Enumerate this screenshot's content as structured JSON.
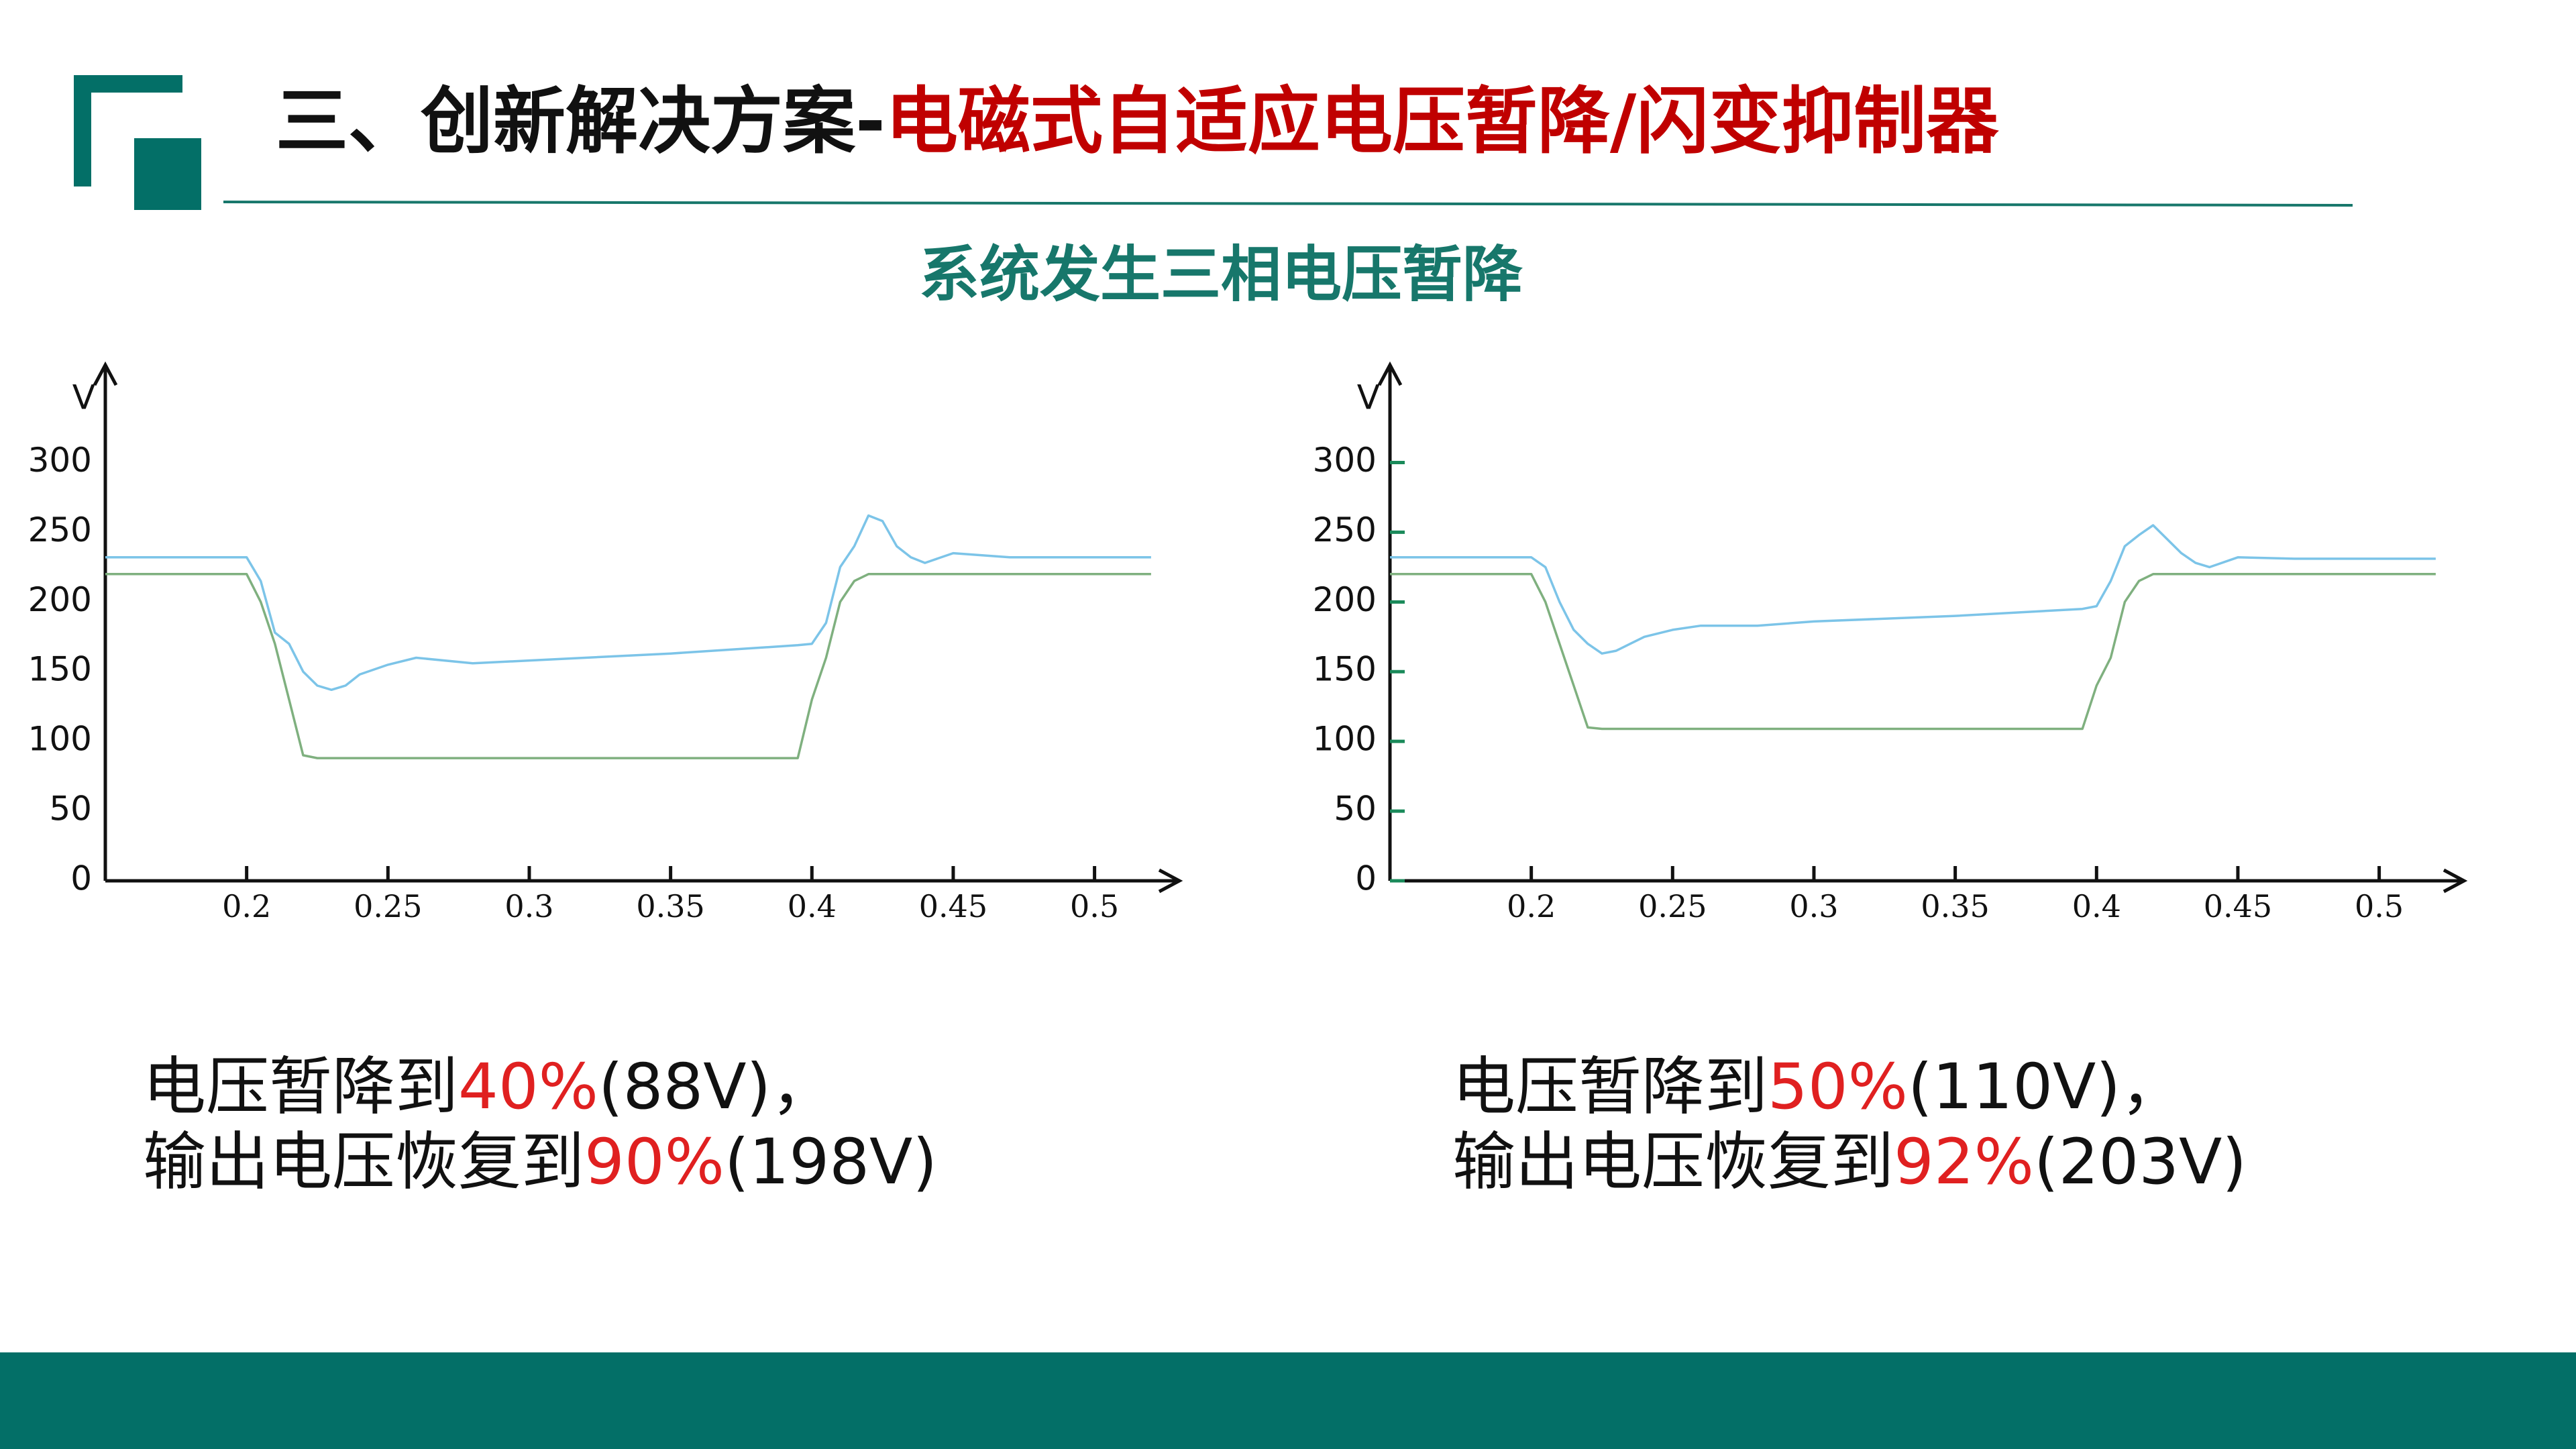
{
  "header": {
    "title_parts": [
      {
        "text": "三、创新解决方案-",
        "color": "#111111"
      },
      {
        "text": "电磁式自适应电压暂降/闪变抑制器",
        "color": "#c00000"
      }
    ]
  },
  "subtitle": "系统发生三相电压暂降",
  "chart_data": [
    {
      "type": "line",
      "y_label": "V",
      "x": [
        0.15,
        0.2,
        0.205,
        0.21,
        0.215,
        0.22,
        0.225,
        0.23,
        0.235,
        0.24,
        0.25,
        0.26,
        0.28,
        0.3,
        0.35,
        0.395,
        0.4,
        0.405,
        0.41,
        0.415,
        0.42,
        0.425,
        0.43,
        0.435,
        0.44,
        0.45,
        0.47,
        0.5,
        0.52
      ],
      "series": [
        {
          "color": "#7cc4e8",
          "values": [
            232,
            232,
            215,
            178,
            170,
            150,
            140,
            137,
            140,
            148,
            155,
            160,
            156,
            158,
            163,
            169,
            170,
            185,
            225,
            240,
            262,
            258,
            240,
            232,
            228,
            235,
            232,
            232,
            232
          ]
        },
        {
          "color": "#7fb07f",
          "values": [
            220,
            220,
            200,
            170,
            130,
            90,
            88,
            88,
            88,
            88,
            88,
            88,
            88,
            88,
            88,
            88,
            130,
            160,
            200,
            215,
            220,
            220,
            220,
            220,
            220,
            220,
            220,
            220,
            220
          ]
        }
      ],
      "xlim": [
        0.15,
        0.53
      ],
      "ylim": [
        0,
        370
      ],
      "xticks": [
        0.2,
        0.25,
        0.3,
        0.35,
        0.4,
        0.45,
        0.5
      ],
      "yticks": [
        0,
        50,
        100,
        150,
        200,
        250,
        300
      ],
      "ytick_marks": false
    },
    {
      "type": "line",
      "y_label": "V",
      "x": [
        0.15,
        0.2,
        0.205,
        0.21,
        0.215,
        0.22,
        0.225,
        0.23,
        0.235,
        0.24,
        0.25,
        0.26,
        0.28,
        0.3,
        0.35,
        0.395,
        0.4,
        0.405,
        0.41,
        0.415,
        0.42,
        0.425,
        0.43,
        0.435,
        0.44,
        0.45,
        0.47,
        0.5,
        0.52
      ],
      "series": [
        {
          "color": "#7cc4e8",
          "values": [
            232,
            232,
            225,
            200,
            180,
            170,
            163,
            165,
            170,
            175,
            180,
            183,
            183,
            186,
            190,
            195,
            197,
            215,
            240,
            248,
            255,
            245,
            235,
            228,
            225,
            232,
            231,
            231,
            231
          ]
        },
        {
          "color": "#7fb07f",
          "values": [
            220,
            220,
            200,
            170,
            140,
            110,
            109,
            109,
            109,
            109,
            109,
            109,
            109,
            109,
            109,
            109,
            140,
            160,
            200,
            215,
            220,
            220,
            220,
            220,
            220,
            220,
            220,
            220,
            220
          ]
        }
      ],
      "xlim": [
        0.15,
        0.53
      ],
      "ylim": [
        0,
        370
      ],
      "xticks": [
        0.2,
        0.25,
        0.3,
        0.35,
        0.4,
        0.45,
        0.5
      ],
      "yticks": [
        0,
        50,
        100,
        150,
        200,
        250,
        300
      ],
      "ytick_marks": true
    }
  ],
  "captions": [
    {
      "lines": [
        [
          {
            "text": "电压暂降到"
          },
          {
            "text": "40%",
            "color": "#e02020"
          },
          {
            "text": "(88V)，"
          }
        ],
        [
          {
            "text": "输出电压恢复到"
          },
          {
            "text": "90%",
            "color": "#e02020"
          },
          {
            "text": "(198V)"
          }
        ]
      ]
    },
    {
      "lines": [
        [
          {
            "text": "电压暂降到"
          },
          {
            "text": "50%",
            "color": "#e02020"
          },
          {
            "text": "(110V)，"
          }
        ],
        [
          {
            "text": "输出电压恢复到"
          },
          {
            "text": "92%",
            "color": "#e02020"
          },
          {
            "text": "(203V)"
          }
        ]
      ]
    }
  ]
}
